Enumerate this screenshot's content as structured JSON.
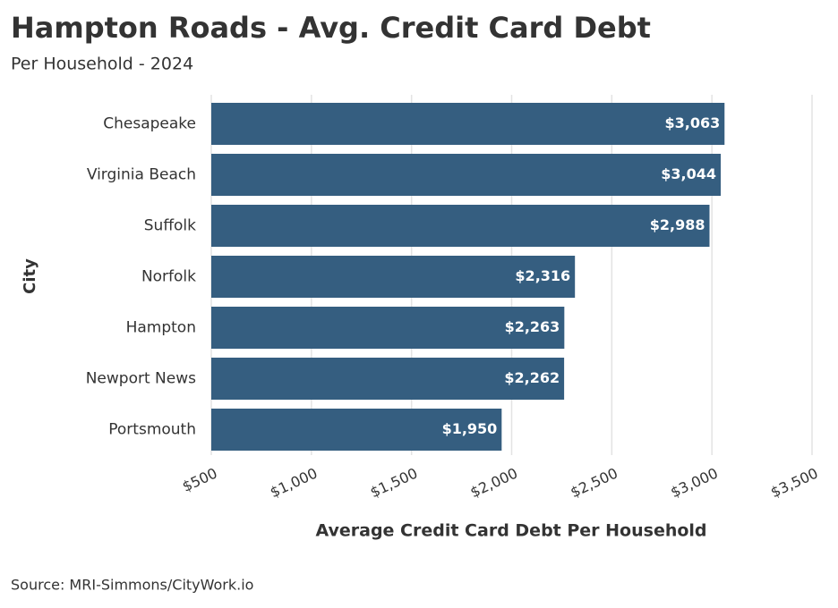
{
  "chart_data": {
    "type": "bar",
    "orientation": "horizontal",
    "title": "Hampton Roads - Avg. Credit Card Debt",
    "subtitle": "Per Household - 2024",
    "x_label": "Average Credit Card Debt Per Household",
    "y_label": "City",
    "source": "Source: MRI-Simmons/CityWork.io",
    "categories": [
      "Chesapeake",
      "Virginia Beach",
      "Suffolk",
      "Norfolk",
      "Hampton",
      "Newport News",
      "Portsmouth"
    ],
    "values": [
      3063,
      3044,
      2988,
      2316,
      2263,
      2262,
      1950
    ],
    "value_labels": [
      "$3,063",
      "$3,044",
      "$2,988",
      "$2,316",
      "$2,263",
      "$2,262",
      "$1,950"
    ],
    "color": "#355e80",
    "xlim": [
      500,
      3500
    ],
    "xticks": [
      {
        "value": 500,
        "label": "$500"
      },
      {
        "value": 1000,
        "label": "$1,000"
      },
      {
        "value": 1500,
        "label": "$1,500"
      },
      {
        "value": 2000,
        "label": "$2,000"
      },
      {
        "value": 2500,
        "label": "$2,500"
      },
      {
        "value": 3000,
        "label": "$3,000"
      },
      {
        "value": 3500,
        "label": "$3,500"
      }
    ],
    "grid": true
  }
}
